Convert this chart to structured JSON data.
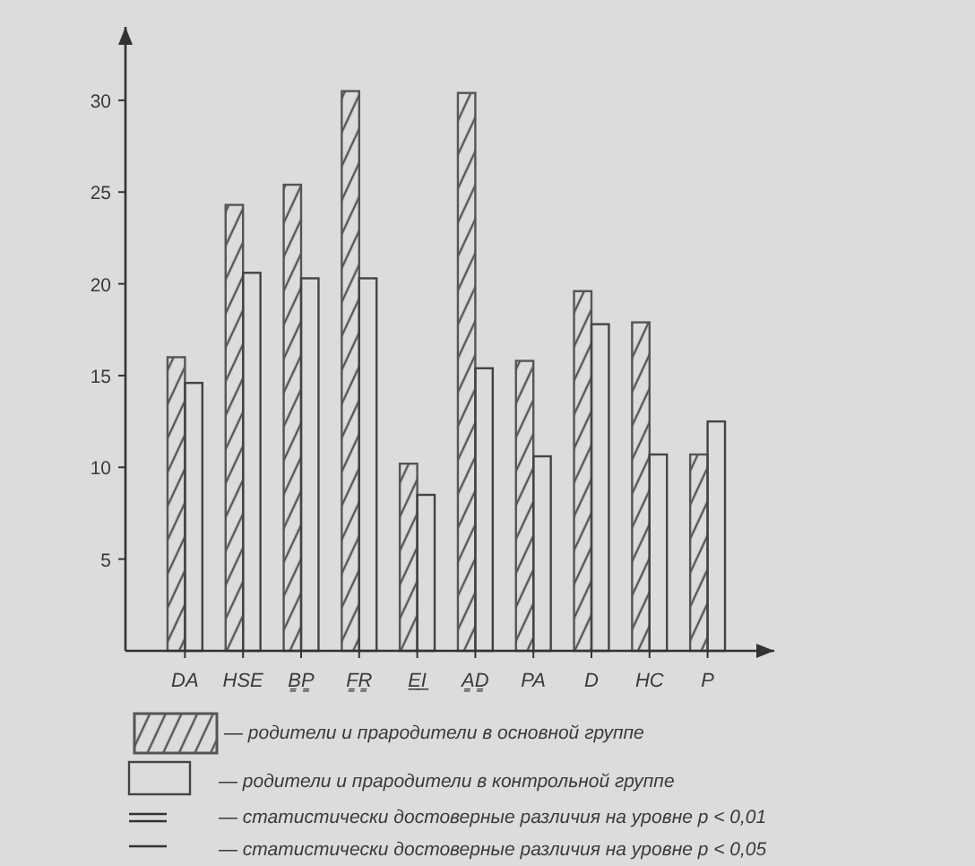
{
  "chart_data": {
    "type": "bar",
    "categories": [
      "DA",
      "HSE",
      "B̳P̳",
      "F̳R̳",
      "E̲I̲",
      "A̳D̳",
      "PA",
      "D",
      "HC",
      "P"
    ],
    "series": [
      {
        "name": "— родители и прародители в основной группе",
        "color": "#555555",
        "values": [
          16,
          24.3,
          25.4,
          30.5,
          10.2,
          30.4,
          15.8,
          19.6,
          17.9,
          10.7
        ]
      },
      {
        "name": "— родители и прародители в контрольной группе",
        "color": "#444444",
        "values": [
          14.6,
          20.6,
          20.3,
          20.3,
          8.5,
          15.4,
          10.6,
          17.8,
          10.7,
          12.5
        ]
      }
    ],
    "ylim": [
      0,
      34
    ],
    "yticks": [
      5,
      10,
      15,
      20,
      25,
      30
    ],
    "grid": false,
    "legend": "bottom",
    "annotations": [
      "— статистически достоверные различия на уровне  p < 0,01",
      "— статистически достоверные различия на уровне  p < 0,05"
    ]
  }
}
